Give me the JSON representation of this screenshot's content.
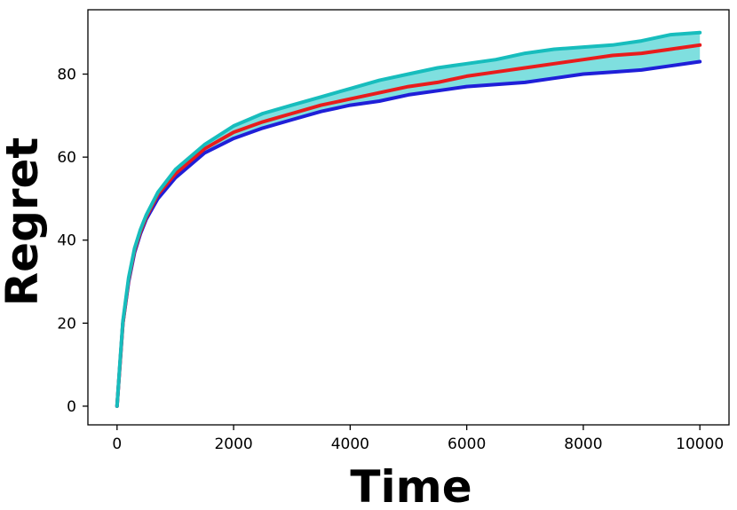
{
  "chart_data": {
    "type": "line",
    "title": "",
    "xlabel": "Time",
    "ylabel": "Regret",
    "xlim": [
      -500,
      10500
    ],
    "ylim": [
      -4.5,
      95.5
    ],
    "xticks": [
      0,
      2000,
      4000,
      6000,
      8000,
      10000
    ],
    "xtick_labels": [
      "0",
      "2000",
      "4000",
      "6000",
      "8000",
      "10000"
    ],
    "yticks": [
      0,
      20,
      40,
      60,
      80
    ],
    "ytick_labels": [
      "0",
      "20",
      "40",
      "60",
      "80"
    ],
    "grid": false,
    "legend": "none",
    "x": [
      0,
      50,
      100,
      200,
      300,
      400,
      500,
      700,
      1000,
      1500,
      2000,
      2500,
      3000,
      3500,
      4000,
      4500,
      5000,
      5500,
      6000,
      6500,
      7000,
      7500,
      8000,
      8500,
      9000,
      9500,
      10000
    ],
    "series": [
      {
        "color": "#1f1fd8",
        "values": [
          0,
          10,
          20,
          30,
          37,
          41.5,
          45,
          50,
          55,
          61,
          64.5,
          67,
          69,
          71,
          72.5,
          73.5,
          75,
          76,
          77,
          77.5,
          78,
          79,
          80,
          80.5,
          81,
          82,
          83
        ]
      },
      {
        "color": "#e81c1c",
        "values": [
          0,
          10,
          20,
          30.5,
          37.5,
          42,
          45.5,
          51,
          56,
          62,
          66,
          68.5,
          70.5,
          72.5,
          74,
          75.5,
          77,
          78,
          79.5,
          80.5,
          81.5,
          82.5,
          83.5,
          84.5,
          85,
          86,
          87
        ]
      },
      {
        "color": "#17bdbd",
        "values": [
          0,
          10.5,
          20.5,
          31,
          38,
          42.5,
          46,
          51.5,
          57,
          63,
          67.5,
          70.5,
          72.5,
          74.5,
          76.5,
          78.5,
          80,
          81.5,
          82.5,
          83.5,
          85,
          86,
          86.5,
          87,
          88,
          89.5,
          90
        ]
      }
    ],
    "band": {
      "color": "#7fdfdf",
      "lower_series": 0,
      "upper_series": 2
    }
  }
}
